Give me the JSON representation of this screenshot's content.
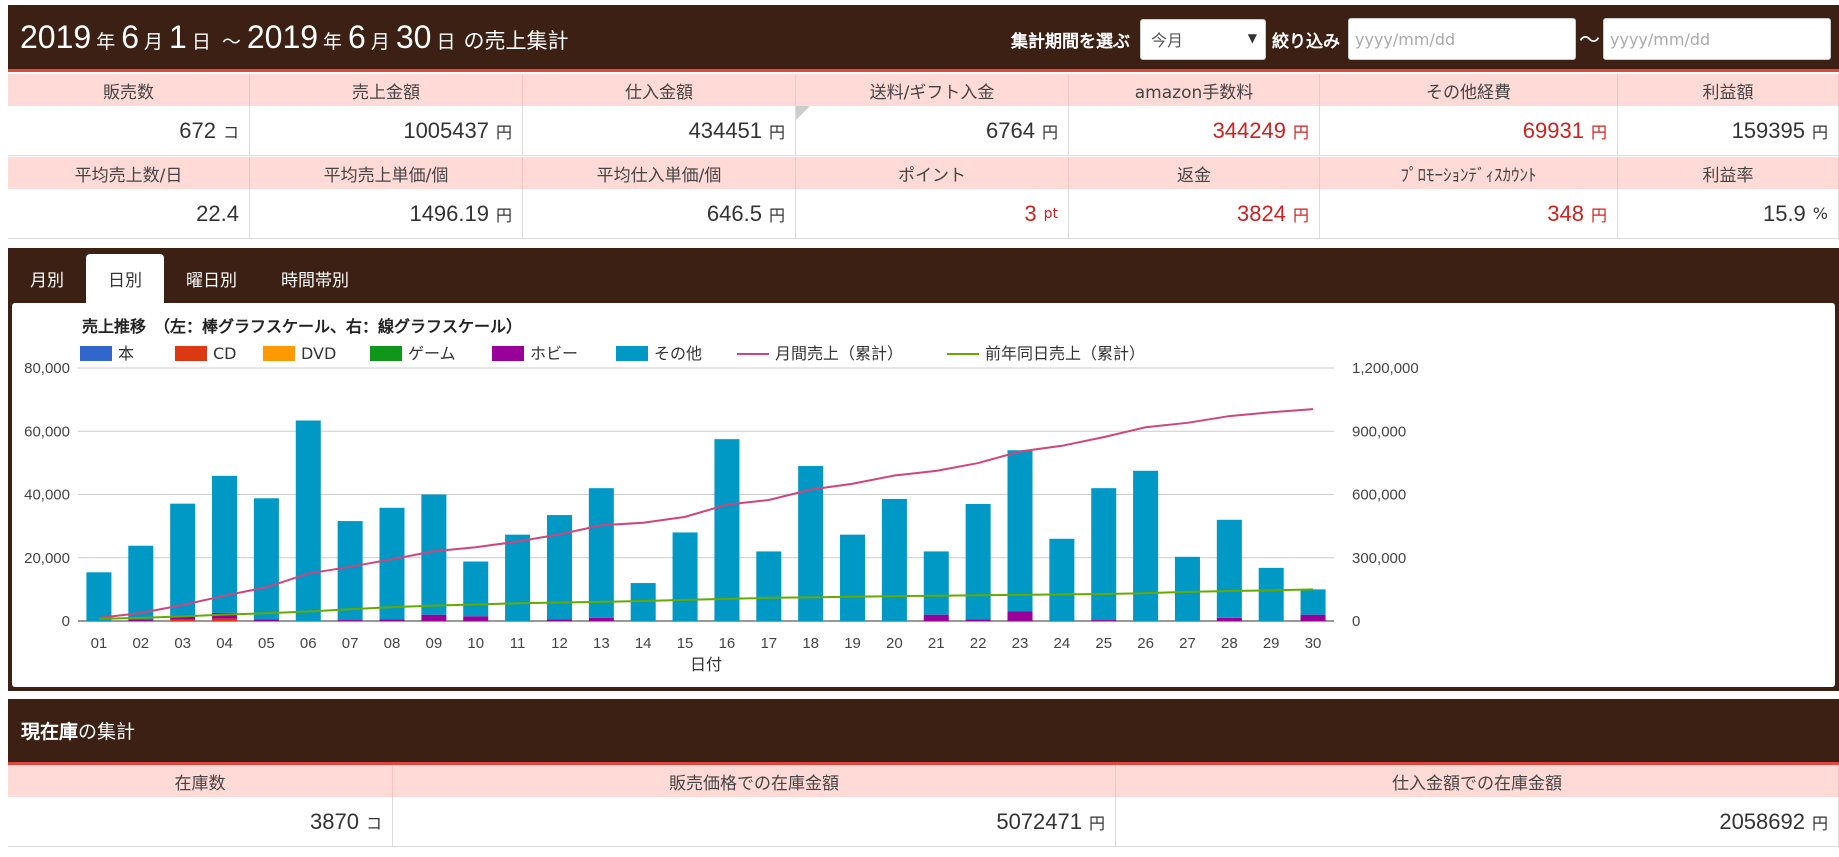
{
  "header": {
    "start_year": "2019",
    "year_label_1": "年",
    "start_month": "6",
    "month_label_1": "月",
    "start_day": "1",
    "day_label_1": "日",
    "range_sep": "～",
    "end_year": "2019",
    "year_label_2": "年",
    "end_month": "6",
    "month_label_2": "月",
    "end_day": "30",
    "day_label_2": "日",
    "suffix": "の売上集計",
    "period_label": "集計期間を選ぶ",
    "period_select": "今月",
    "filter_label": "絞り込み",
    "date_from_placeholder": "yyyy/mm/dd",
    "date_sep": "～",
    "date_to_placeholder": "yyyy/mm/dd"
  },
  "summary_row1": [
    {
      "label": "販売数",
      "value": "672",
      "unit": "コ",
      "red": false
    },
    {
      "label": "売上金額",
      "value": "1005437",
      "unit": "円",
      "red": false
    },
    {
      "label": "仕入金額",
      "value": "434451",
      "unit": "円",
      "red": false
    },
    {
      "label": "送料/ギフト入金",
      "value": "6764",
      "unit": "円",
      "red": false
    },
    {
      "label": "amazon手数料",
      "value": "344249",
      "unit": "円",
      "red": true
    },
    {
      "label": "その他経費",
      "value": "69931",
      "unit": "円",
      "red": true
    },
    {
      "label": "利益額",
      "value": "159395",
      "unit": "円",
      "red": false
    }
  ],
  "summary_row2": [
    {
      "label": "平均売上数/日",
      "value": "22.4",
      "unit": "",
      "red": false
    },
    {
      "label": "平均売上単価/個",
      "value": "1496.19",
      "unit": "円",
      "red": false
    },
    {
      "label": "平均仕入単価/個",
      "value": "646.5",
      "unit": "円",
      "red": false
    },
    {
      "label": "ポイント",
      "value": "3",
      "unit": "pt",
      "red": true
    },
    {
      "label": "返金",
      "value": "3824",
      "unit": "円",
      "red": true
    },
    {
      "label": "ﾌﾟﾛﾓｰｼｮﾝﾃﾞｨｽｶｳﾝﾄ",
      "value": "348",
      "unit": "円",
      "red": true
    },
    {
      "label": "利益率",
      "value": "15.9",
      "unit": "%",
      "red": false
    }
  ],
  "tabs": [
    "月別",
    "日別",
    "曜日別",
    "時間帯別"
  ],
  "active_tab": 1,
  "stock": {
    "title_bold": "現在庫",
    "title_rest": "の集計",
    "cells": [
      {
        "label": "在庫数",
        "value": "3870",
        "unit": "コ"
      },
      {
        "label": "販売価格での在庫金額",
        "value": "5072471",
        "unit": "円"
      },
      {
        "label": "仕入金額での在庫金額",
        "value": "2058692",
        "unit": "円"
      }
    ]
  },
  "colors": {
    "brown": "#3c2014",
    "accent_red": "#e2483d",
    "header_pink": "#ffdad6",
    "value_red": "#d0211f"
  },
  "chart_data": {
    "type": "bar",
    "title": "売上推移　（左：棒グラフスケール、右：線グラフスケール）",
    "xlabel": "日付",
    "ylabel": "",
    "ylim": [
      0,
      80000
    ],
    "y2lim": [
      0,
      1200000
    ],
    "y_ticks": [
      "0",
      "20,000",
      "40,000",
      "60,000",
      "80,000"
    ],
    "y2_ticks": [
      "0",
      "300,000",
      "600,000",
      "900,000",
      "1,200,000"
    ],
    "categories": [
      "01",
      "02",
      "03",
      "04",
      "05",
      "06",
      "07",
      "08",
      "09",
      "10",
      "11",
      "12",
      "13",
      "14",
      "15",
      "16",
      "17",
      "18",
      "19",
      "20",
      "21",
      "22",
      "23",
      "24",
      "25",
      "26",
      "27",
      "28",
      "29",
      "30"
    ],
    "stacked": true,
    "legend_position": "top-left",
    "series": [
      {
        "name": "本",
        "type": "bar",
        "color": "#3366cc",
        "values": [
          0,
          0,
          0,
          0,
          0,
          0,
          0,
          0,
          0,
          0,
          0,
          0,
          0,
          0,
          0,
          0,
          0,
          0,
          0,
          0,
          0,
          0,
          0,
          0,
          0,
          0,
          0,
          0,
          0,
          0
        ]
      },
      {
        "name": "CD",
        "type": "bar",
        "color": "#dc3912",
        "values": [
          0,
          0,
          500,
          800,
          0,
          0,
          0,
          0,
          0,
          0,
          0,
          0,
          0,
          0,
          0,
          0,
          0,
          0,
          0,
          0,
          0,
          0,
          0,
          0,
          0,
          0,
          0,
          0,
          0,
          0
        ]
      },
      {
        "name": "DVD",
        "type": "bar",
        "color": "#ff9900",
        "values": [
          0,
          0,
          0,
          0,
          0,
          0,
          0,
          0,
          0,
          0,
          0,
          0,
          0,
          0,
          0,
          0,
          0,
          0,
          0,
          0,
          0,
          0,
          0,
          0,
          0,
          0,
          0,
          0,
          0,
          0
        ]
      },
      {
        "name": "ゲーム",
        "type": "bar",
        "color": "#109618",
        "values": [
          0,
          0,
          0,
          0,
          0,
          0,
          0,
          0,
          0,
          0,
          0,
          0,
          0,
          0,
          0,
          0,
          0,
          0,
          0,
          0,
          0,
          0,
          0,
          0,
          0,
          0,
          0,
          0,
          0,
          0
        ]
      },
      {
        "name": "ホビー",
        "type": "bar",
        "color": "#990099",
        "values": [
          0,
          500,
          800,
          1800,
          500,
          0,
          300,
          500,
          2000,
          1500,
          0,
          500,
          1000,
          0,
          0,
          0,
          0,
          0,
          0,
          0,
          2000,
          500,
          3000,
          0,
          300,
          0,
          0,
          1000,
          0,
          2000
        ]
      },
      {
        "name": "その他",
        "type": "bar",
        "color": "#0099c6",
        "values": [
          15400,
          23300,
          35800,
          43300,
          38300,
          63400,
          31300,
          35300,
          38000,
          17300,
          27300,
          33000,
          41000,
          12000,
          28000,
          57500,
          22000,
          49000,
          27300,
          38600,
          20000,
          36500,
          51000,
          26000,
          41700,
          47500,
          20300,
          31000,
          16800,
          8000
        ]
      },
      {
        "name": "月間売上（累計）",
        "type": "line",
        "axis": "right",
        "color": "#d0457b",
        "values": [
          15000,
          38000,
          76000,
          120000,
          160000,
          225000,
          257000,
          293000,
          331000,
          350000,
          377000,
          411000,
          454000,
          466000,
          494000,
          552000,
          574000,
          623000,
          651000,
          690000,
          712000,
          749000,
          804000,
          831000,
          872000,
          919000,
          940000,
          972000,
          990000,
          1005000
        ]
      },
      {
        "name": "前年同日売上（累計）",
        "type": "line",
        "axis": "right",
        "color": "#66aa00",
        "values": [
          10000,
          15000,
          22000,
          30000,
          37000,
          45000,
          56000,
          66000,
          73000,
          78000,
          84000,
          88000,
          91000,
          95000,
          100000,
          105000,
          110000,
          112000,
          115000,
          118000,
          120000,
          122000,
          124000,
          126000,
          128000,
          132000,
          138000,
          142000,
          145000,
          150000
        ]
      }
    ]
  }
}
